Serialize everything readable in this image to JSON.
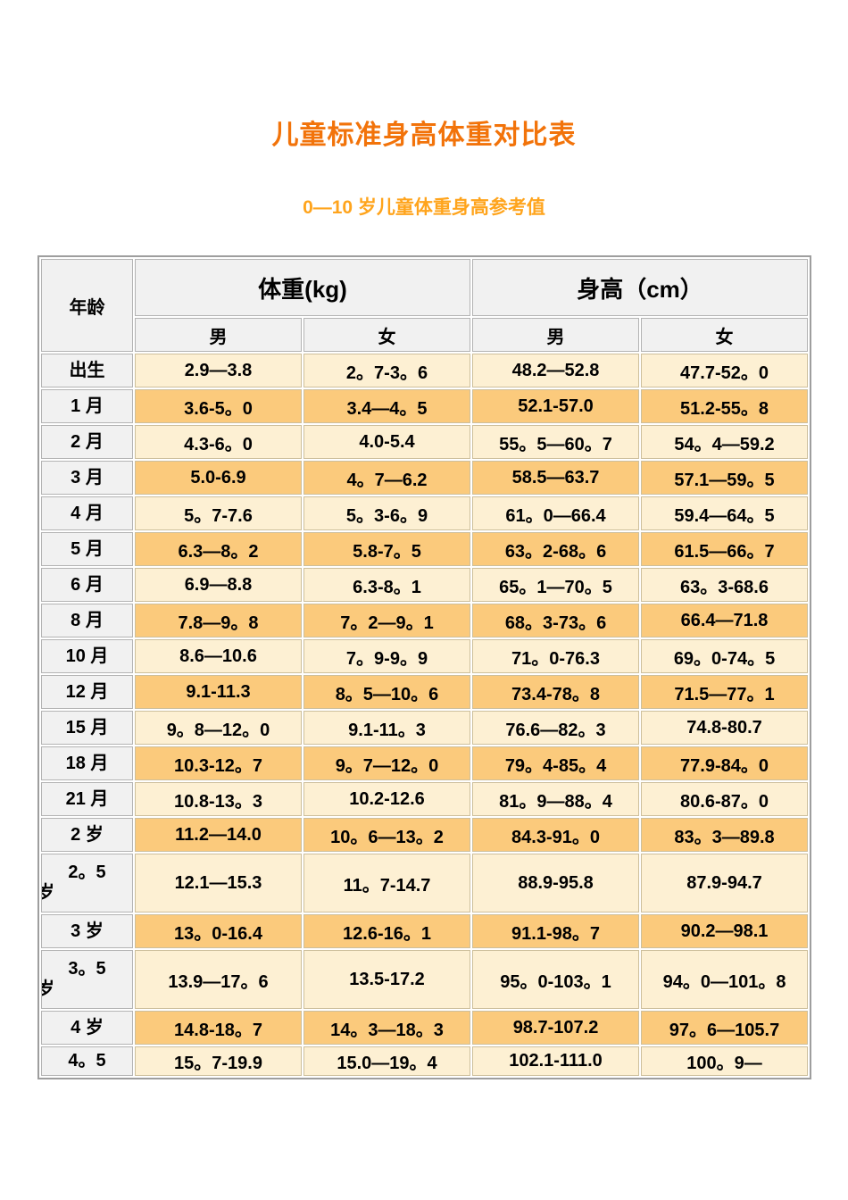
{
  "page": {
    "title": "儿童标准身高体重对比表",
    "subtitle": "0—10 岁儿童体重身高参考值",
    "title_color": "#f2730a",
    "subtitle_color": "#ffa41c"
  },
  "table": {
    "header": {
      "age": "年龄",
      "weight": "体重(kg)",
      "height": "身高（cm）",
      "male": "男",
      "female": "女"
    },
    "colors": {
      "row_cream": "#fdf0d3",
      "row_orange": "#fbca7c",
      "gray_cell": "#f1f1f1",
      "data_border": "#cdbf9c",
      "gray_border": "#b3b3b3",
      "outer_border": "#9e9e9e"
    },
    "rows": [
      {
        "age": "出生",
        "age2": "",
        "wm": "2.9—3.8",
        "wf": "2。7-3。6",
        "hm": "48.2—52.8",
        "hf": "47.7-52。0"
      },
      {
        "age": "1 月",
        "age2": "",
        "wm": "3.6-5。0",
        "wf": "3.4—4。5",
        "hm": "52.1-57.0",
        "hf": "51.2-55。8"
      },
      {
        "age": "2 月",
        "age2": "",
        "wm": "4.3-6。0",
        "wf": "4.0-5.4",
        "hm": "55。5—60。7",
        "hf": "54。4—59.2"
      },
      {
        "age": "3 月",
        "age2": "",
        "wm": "5.0-6.9",
        "wf": "4。7—6.2",
        "hm": "58.5—63.7",
        "hf": "57.1—59。5"
      },
      {
        "age": "4 月",
        "age2": "",
        "wm": "5。7-7.6",
        "wf": "5。3-6。9",
        "hm": "61。0—66.4",
        "hf": "59.4—64。5"
      },
      {
        "age": "5 月",
        "age2": "",
        "wm": "6.3—8。2",
        "wf": "5.8-7。5",
        "hm": "63。2-68。6",
        "hf": "61.5—66。7"
      },
      {
        "age": "6 月",
        "age2": "",
        "wm": "6.9—8.8",
        "wf": "6.3-8。1",
        "hm": "65。1—70。5",
        "hf": "63。3-68.6"
      },
      {
        "age": "8 月",
        "age2": "",
        "wm": "7.8—9。8",
        "wf": "7。2—9。1",
        "hm": "68。3-73。6",
        "hf": "66.4—71.8"
      },
      {
        "age": "10 月",
        "age2": "",
        "wm": "8.6—10.6",
        "wf": "7。9-9。9",
        "hm": "71。0-76.3",
        "hf": "69。0-74。5"
      },
      {
        "age": "12 月",
        "age2": "",
        "wm": "9.1-11.3",
        "wf": "8。5—10。6",
        "hm": "73.4-78。8",
        "hf": "71.5—77。1"
      },
      {
        "age": "15 月",
        "age2": "",
        "wm": "9。8—12。0",
        "wf": "9.1-11。3",
        "hm": "76.6—82。3",
        "hf": "74.8-80.7"
      },
      {
        "age": "18 月",
        "age2": "",
        "wm": "10.3-12。7",
        "wf": "9。7—12。0",
        "hm": "79。4-85。4",
        "hf": "77.9-84。0"
      },
      {
        "age": "21 月",
        "age2": "",
        "wm": "10.8-13。3",
        "wf": "10.2-12.6",
        "hm": "81。9—88。4",
        "hf": "80.6-87。0"
      },
      {
        "age": "2 岁",
        "age2": "",
        "wm": "11.2—14.0",
        "wf": "10。6—13。2",
        "hm": "84.3-91。0",
        "hf": "83。3—89.8"
      },
      {
        "age": "2。5",
        "age2": "岁",
        "wm": "12.1—15.3",
        "wf": "11。7-14.7",
        "hm": "88.9-95.8",
        "hf": "87.9-94.7"
      },
      {
        "age": "3 岁",
        "age2": "",
        "wm": "13。0-16.4",
        "wf": "12.6-16。1",
        "hm": "91.1-98。7",
        "hf": "90.2—98.1"
      },
      {
        "age": "3。5",
        "age2": "岁",
        "wm": "13.9—17。6",
        "wf": "13.5-17.2",
        "hm": "95。0-103。1",
        "hf": "94。0—101。8"
      },
      {
        "age": "4 岁",
        "age2": "",
        "wm": "14.8-18。7",
        "wf": "14。3—18。3",
        "hm": "98.7-107.2",
        "hf": "97。6—105.7"
      },
      {
        "age": "4。5",
        "age2": "",
        "wm": "15。7-19.9",
        "wf": "15.0—19。4",
        "hm": "102.1-111.0",
        "hf": "100。9—"
      }
    ]
  }
}
